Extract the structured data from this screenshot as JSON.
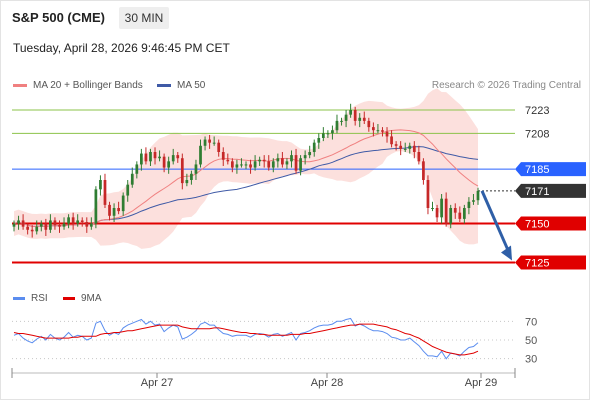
{
  "header": {
    "title": "S&P 500 (CME)",
    "timeframe": "30 MIN",
    "datetime": "Tuesday, April 28, 2026 9:46:45 PM CET"
  },
  "legend": {
    "ma20": "MA 20 + Bollinger Bands",
    "ma50": "MA 50",
    "credit": "Research © 2026 Trading Central"
  },
  "rsi_legend": {
    "rsi": "RSI",
    "ma9": "9MA"
  },
  "colors": {
    "up": "#2f7d32",
    "down": "#c62828",
    "ma20": "#f08080",
    "band_fill": "#fbd5d2",
    "ma50": "#3f5aa6",
    "resistance": "#2962ff",
    "support": "#e00000",
    "green_level": "#8bc34a",
    "current": "#333333",
    "arrow": "#2f5fa7",
    "rsi": "#5b8def",
    "rsi_ma": "#e00000"
  },
  "chart_data": [
    {
      "type": "candlestick",
      "x_labels": [
        "Apr 27",
        "Apr 28",
        "Apr 29"
      ],
      "ylim": [
        7115,
        7232
      ],
      "levels": [
        {
          "label": "7223",
          "value": 7223,
          "kind": "green"
        },
        {
          "label": "7208",
          "value": 7208,
          "kind": "green"
        },
        {
          "label": "7185",
          "value": 7185,
          "kind": "resistance"
        },
        {
          "label": "7171",
          "value": 7171,
          "kind": "current"
        },
        {
          "label": "7150",
          "value": 7150,
          "kind": "support"
        },
        {
          "label": "7125",
          "value": 7125,
          "kind": "support"
        }
      ],
      "projection": {
        "from": 7171,
        "to": 7125
      },
      "close": [
        7150,
        7152,
        7148,
        7146,
        7145,
        7148,
        7150,
        7146,
        7152,
        7149,
        7148,
        7150,
        7154,
        7150,
        7152,
        7151,
        7148,
        7150,
        7172,
        7178,
        7162,
        7155,
        7160,
        7158,
        7168,
        7175,
        7182,
        7188,
        7195,
        7190,
        7196,
        7192,
        7193,
        7186,
        7190,
        7194,
        7192,
        7176,
        7178,
        7182,
        7188,
        7200,
        7204,
        7202,
        7202,
        7196,
        7191,
        7190,
        7186,
        7188,
        7188,
        7188,
        7186,
        7190,
        7191,
        7190,
        7186,
        7190,
        7192,
        7188,
        7190,
        7194,
        7184,
        7192,
        7194,
        7196,
        7202,
        7205,
        7208,
        7208,
        7210,
        7216,
        7216,
        7220,
        7223,
        7216,
        7218,
        7216,
        7212,
        7210,
        7210,
        7209,
        7206,
        7201,
        7200,
        7198,
        7198,
        7200,
        7196,
        7190,
        7178,
        7160,
        7160,
        7154,
        7166,
        7150,
        7160,
        7157,
        7153,
        7160,
        7164,
        7165,
        7171
      ]
    },
    {
      "type": "line",
      "name": "RSI",
      "ticks": [
        70,
        50,
        30
      ],
      "ylim": [
        20,
        80
      ],
      "rsi": [
        55,
        57,
        52,
        49,
        47,
        51,
        54,
        50,
        56,
        52,
        50,
        53,
        58,
        53,
        55,
        54,
        50,
        52,
        68,
        70,
        60,
        55,
        58,
        56,
        63,
        66,
        68,
        70,
        72,
        67,
        70,
        66,
        67,
        59,
        63,
        66,
        64,
        51,
        53,
        56,
        60,
        67,
        69,
        66,
        66,
        61,
        57,
        56,
        54,
        55,
        55,
        55,
        53,
        56,
        57,
        56,
        53,
        56,
        57,
        54,
        56,
        58,
        50,
        57,
        58,
        60,
        63,
        65,
        66,
        66,
        67,
        70,
        70,
        72,
        73,
        65,
        67,
        65,
        62,
        60,
        60,
        59,
        57,
        53,
        52,
        50,
        50,
        52,
        48,
        44,
        38,
        33,
        33,
        32,
        38,
        30,
        36,
        35,
        33,
        38,
        42,
        43,
        47
      ],
      "ma9": [
        58,
        57,
        57,
        56,
        55,
        54,
        53,
        52,
        52,
        52,
        52,
        52,
        52,
        53,
        53,
        54,
        54,
        54,
        54,
        56,
        57,
        57,
        58,
        58,
        59,
        60,
        60,
        61,
        62,
        63,
        64,
        65,
        66,
        66,
        66,
        66,
        66,
        64,
        63,
        62,
        62,
        62,
        62,
        62,
        63,
        63,
        62,
        61,
        60,
        59,
        58,
        58,
        57,
        57,
        56,
        56,
        55,
        55,
        55,
        55,
        55,
        56,
        56,
        56,
        57,
        57,
        58,
        59,
        60,
        61,
        62,
        63,
        64,
        65,
        66,
        66,
        67,
        67,
        67,
        67,
        66,
        65,
        64,
        62,
        61,
        59,
        57,
        56,
        54,
        52,
        49,
        46,
        43,
        41,
        39,
        37,
        36,
        35,
        34,
        34,
        35,
        36,
        38
      ]
    }
  ]
}
